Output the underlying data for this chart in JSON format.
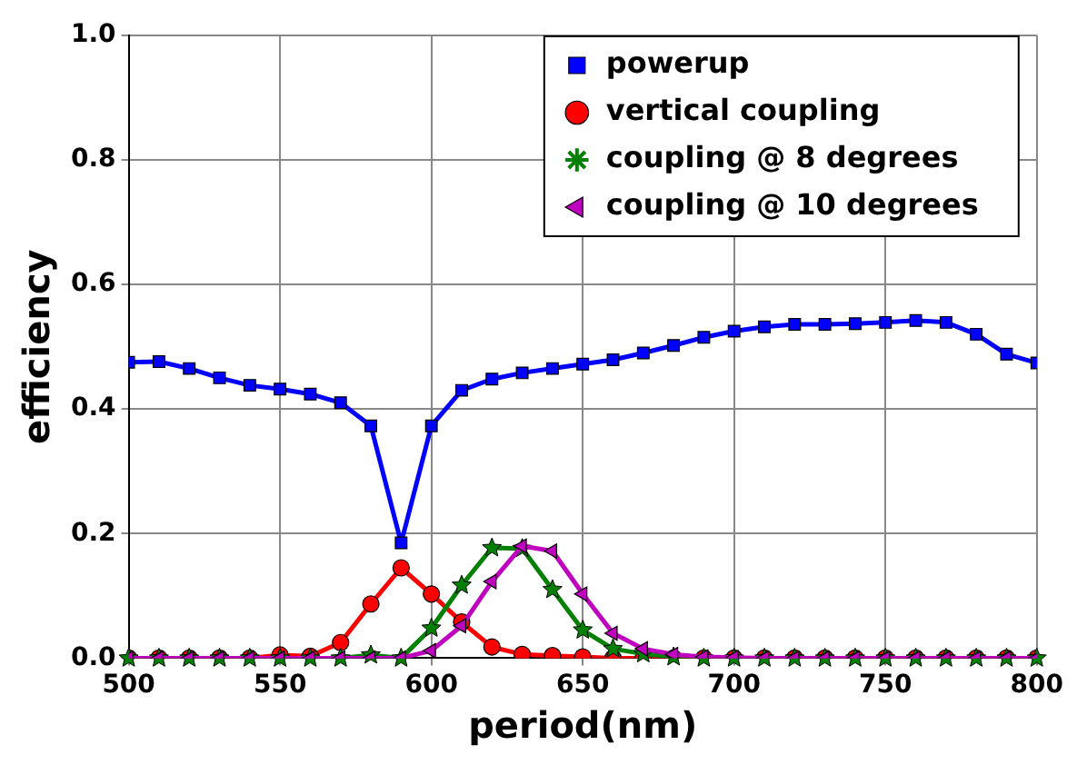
{
  "chart_data": {
    "type": "line",
    "xlabel": "period(nm)",
    "ylabel": "efficiency",
    "x": [
      500,
      510,
      520,
      530,
      540,
      550,
      560,
      570,
      580,
      590,
      600,
      610,
      620,
      630,
      640,
      650,
      660,
      670,
      680,
      690,
      700,
      710,
      720,
      730,
      740,
      750,
      760,
      770,
      780,
      790,
      800
    ],
    "xlim": [
      500,
      800
    ],
    "xticks": [
      500,
      550,
      600,
      650,
      700,
      750,
      800
    ],
    "ylim": [
      0,
      1
    ],
    "yticks": [
      {
        "value": 0,
        "label": "0.0"
      },
      0.2,
      0.4,
      0.6,
      0.8,
      {
        "value": 1,
        "label": "1.0"
      }
    ],
    "grid": true,
    "legend": "top right",
    "line_style": "solid",
    "series": [
      {
        "name": "powerup",
        "color": "#0000ff",
        "marker": "square",
        "values": [
          0.475,
          0.476,
          0.465,
          0.45,
          0.438,
          0.432,
          0.424,
          0.41,
          0.373,
          0.185,
          0.373,
          0.43,
          0.448,
          0.458,
          0.465,
          0.472,
          0.479,
          0.49,
          0.502,
          0.515,
          0.525,
          0.532,
          0.536,
          0.536,
          0.537,
          0.539,
          0.542,
          0.539,
          0.52,
          0.488,
          0.474
        ]
      },
      {
        "name": "vertical coupling",
        "color": "#ff0000",
        "marker": "circle",
        "values": [
          0,
          0,
          0,
          0,
          0,
          0.005,
          0.003,
          0.025,
          0.087,
          0.145,
          0.103,
          0.058,
          0.018,
          0.006,
          0.004,
          0.002,
          0,
          0,
          0,
          0,
          0,
          0,
          0,
          0,
          0,
          0,
          0,
          0,
          0,
          0,
          0
        ]
      },
      {
        "name": "coupling @ 8 degrees",
        "color": "#008000",
        "marker": "star",
        "values": [
          0,
          0,
          0,
          0,
          0,
          0,
          0,
          0,
          0.005,
          0,
          0.048,
          0.117,
          0.177,
          0.176,
          0.11,
          0.045,
          0.015,
          0.007,
          0.002,
          0,
          0,
          0,
          0,
          0,
          0,
          0,
          0,
          0,
          0,
          0,
          0
        ]
      },
      {
        "name": "coupling @ 10 degrees",
        "color": "#bf00bf",
        "marker": "triangle",
        "values": [
          0,
          0,
          0,
          0,
          0,
          0,
          0,
          0,
          0,
          0,
          0.012,
          0.052,
          0.123,
          0.18,
          0.172,
          0.103,
          0.04,
          0.015,
          0.006,
          0.002,
          0.001,
          0,
          0,
          0,
          0,
          0,
          0,
          0,
          0,
          0,
          0
        ]
      }
    ]
  }
}
